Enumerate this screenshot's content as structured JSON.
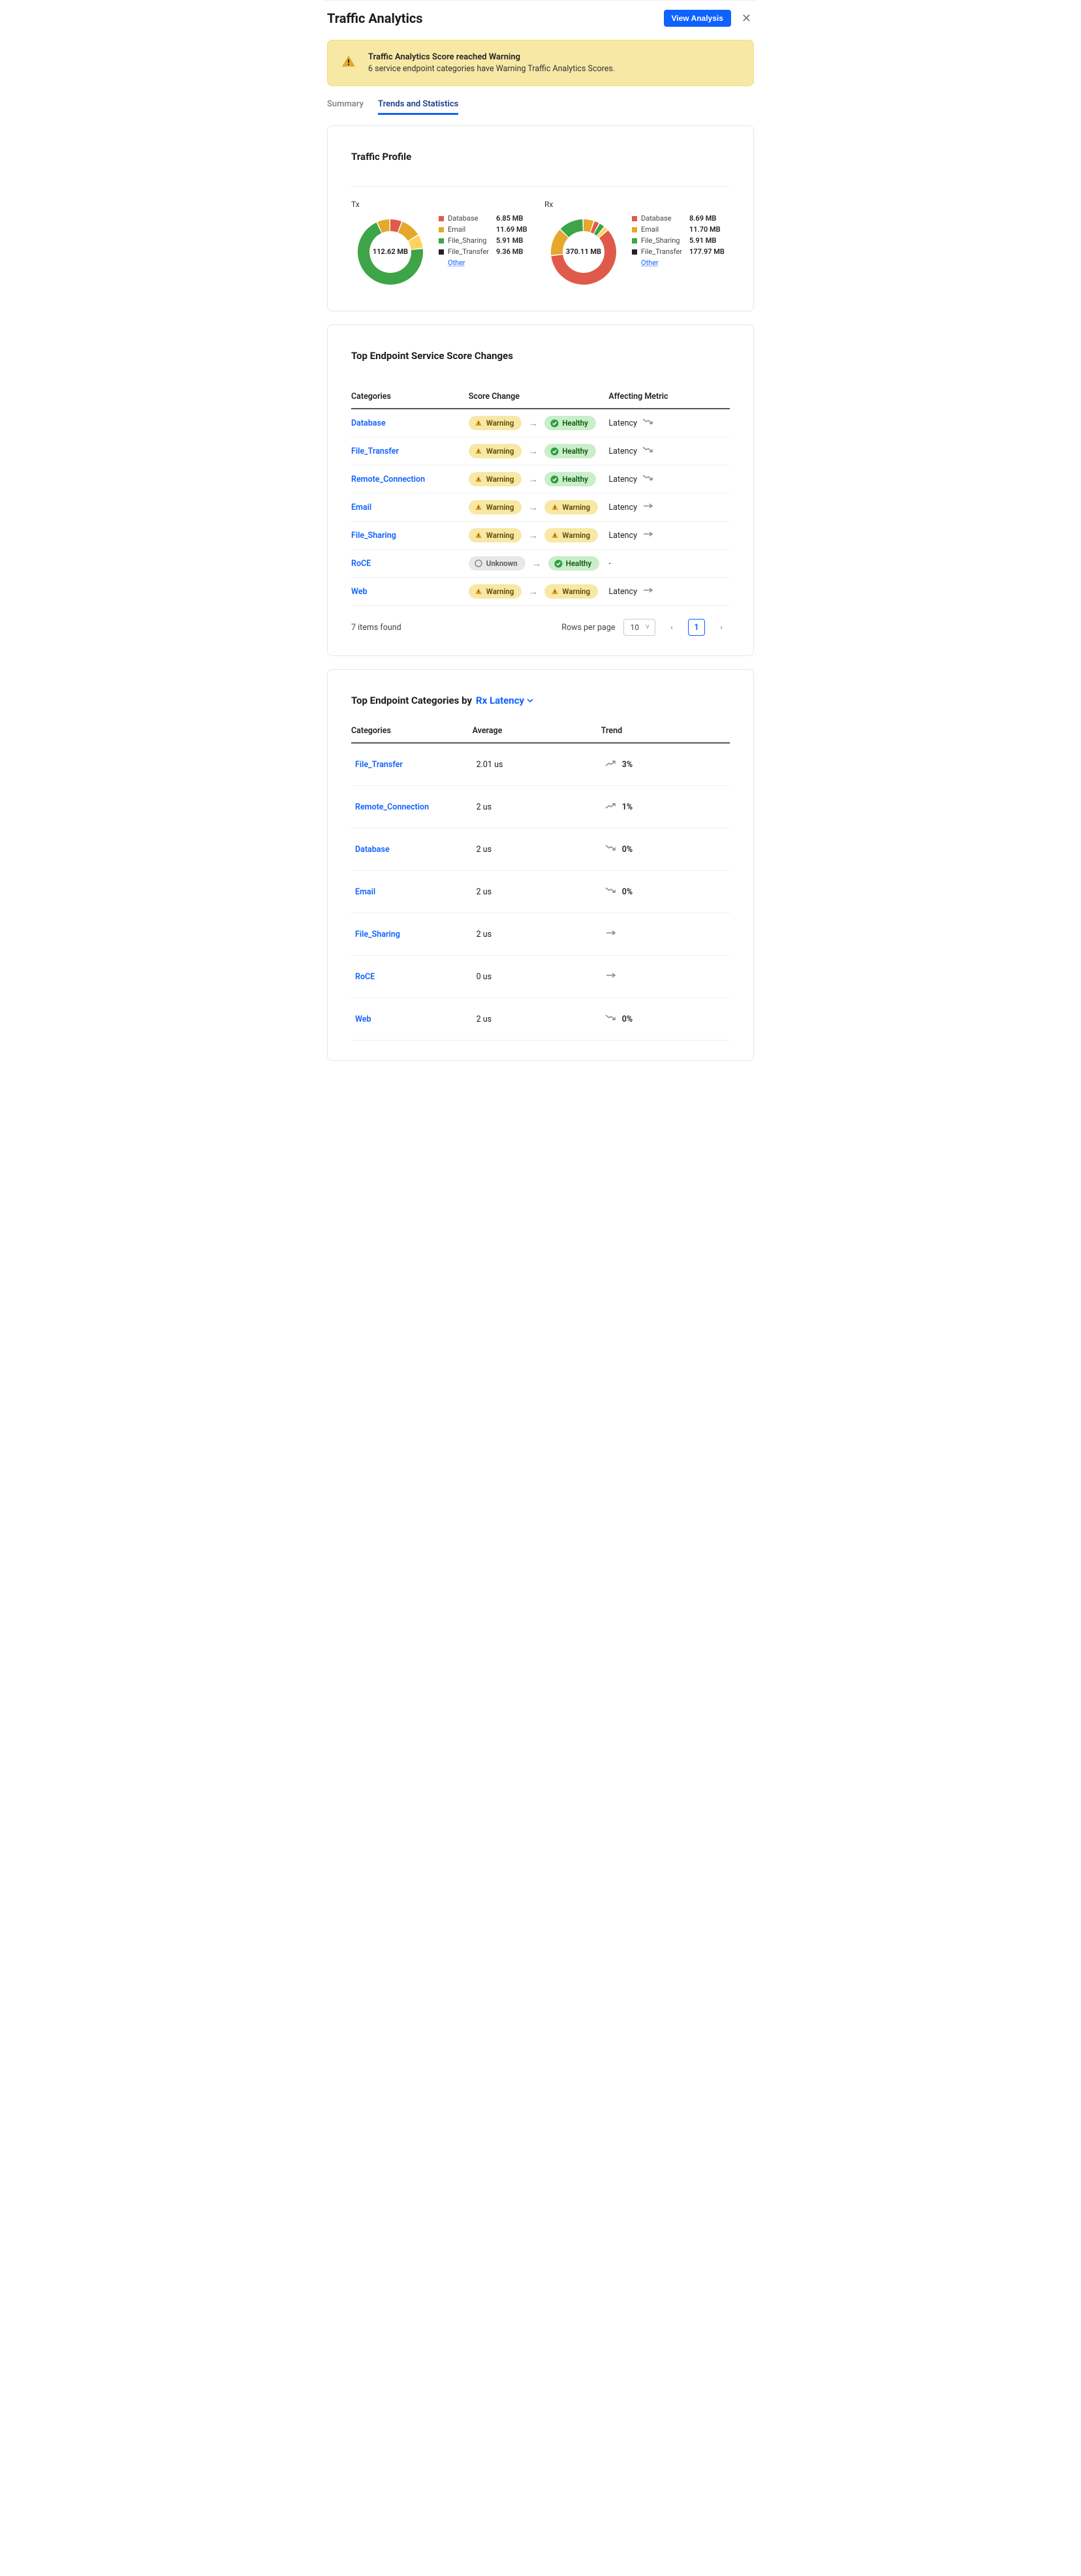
{
  "header": {
    "title": "Traffic Analytics",
    "view_button": "View Analysis"
  },
  "alert": {
    "title": "Traffic Analytics Score reached Warning",
    "text": "6 service endpoint categories have Warning Traffic Analytics Scores."
  },
  "tabs": {
    "summary": "Summary",
    "trends": "Trends and Statistics"
  },
  "profile": {
    "title": "Traffic Profile",
    "tx_label": "Tx",
    "rx_label": "Rx",
    "other": "Other",
    "tx_total": "112.62 MB",
    "rx_total": "370.11 MB",
    "legend_colors": {
      "Database": "#e05a4a",
      "Email": "#e5a82c",
      "File_Sharing": "#3da447",
      "File_Transfer": "#222222"
    },
    "tx_legend": [
      {
        "name": "Database",
        "val": "6.85 MB"
      },
      {
        "name": "Email",
        "val": "11.69 MB"
      },
      {
        "name": "File_Sharing",
        "val": "5.91 MB"
      },
      {
        "name": "File_Transfer",
        "val": "9.36 MB"
      }
    ],
    "rx_legend": [
      {
        "name": "Database",
        "val": "8.69 MB"
      },
      {
        "name": "Email",
        "val": "11.70 MB"
      },
      {
        "name": "File_Sharing",
        "val": "5.91 MB"
      },
      {
        "name": "File_Transfer",
        "val": "177.97 MB"
      }
    ],
    "tx_slices": [
      {
        "color": "#e05a4a",
        "frac": 0.061
      },
      {
        "color": "#e5a82c",
        "frac": 0.104
      },
      {
        "color": "#ffd35a",
        "frac": 0.07
      },
      {
        "color": "#3da447",
        "frac": 0.7
      },
      {
        "color": "#e5a82c",
        "frac": 0.065
      }
    ],
    "rx_slices": [
      {
        "color": "#e5a82c",
        "frac": 0.055
      },
      {
        "color": "#e05a4a",
        "frac": 0.028
      },
      {
        "color": "#3da447",
        "frac": 0.03
      },
      {
        "color": "#ffd35a",
        "frac": 0.022
      },
      {
        "color": "#e05a4a",
        "frac": 0.6
      },
      {
        "color": "#e5a82c",
        "frac": 0.14
      },
      {
        "color": "#3da447",
        "frac": 0.125
      }
    ]
  },
  "score_changes": {
    "title": "Top Endpoint Service Score Changes",
    "cols": {
      "cat": "Categories",
      "change": "Score Change",
      "metric": "Affecting Metric"
    },
    "rows": [
      {
        "cat": "Database",
        "from": "Warning",
        "to": "Healthy",
        "metric": "Latency",
        "trend": "down"
      },
      {
        "cat": "File_Transfer",
        "from": "Warning",
        "to": "Healthy",
        "metric": "Latency",
        "trend": "down"
      },
      {
        "cat": "Remote_Connection",
        "from": "Warning",
        "to": "Healthy",
        "metric": "Latency",
        "trend": "down"
      },
      {
        "cat": "Email",
        "from": "Warning",
        "to": "Warning",
        "metric": "Latency",
        "trend": "flat"
      },
      {
        "cat": "File_Sharing",
        "from": "Warning",
        "to": "Warning",
        "metric": "Latency",
        "trend": "flat"
      },
      {
        "cat": "RoCE",
        "from": "Unknown",
        "to": "Healthy",
        "metric": "-",
        "trend": "none"
      },
      {
        "cat": "Web",
        "from": "Warning",
        "to": "Warning",
        "metric": "Latency",
        "trend": "flat"
      }
    ],
    "pager": {
      "count_text": "7 items found",
      "rows_per_page_label": "Rows per page",
      "rows_per_page": "10",
      "page": "1"
    }
  },
  "by_metric": {
    "title_prefix": "Top Endpoint Categories by",
    "metric": "Rx Latency",
    "cols": {
      "cat": "Categories",
      "avg": "Average",
      "trend": "Trend"
    },
    "rows": [
      {
        "cat": "File_Transfer",
        "avg": "2.01 us",
        "trend": "up",
        "pct": "3%"
      },
      {
        "cat": "Remote_Connection",
        "avg": "2 us",
        "trend": "up",
        "pct": "1%"
      },
      {
        "cat": "Database",
        "avg": "2 us",
        "trend": "down",
        "pct": "0%"
      },
      {
        "cat": "Email",
        "avg": "2 us",
        "trend": "down",
        "pct": "0%"
      },
      {
        "cat": "File_Sharing",
        "avg": "2 us",
        "trend": "flat",
        "pct": ""
      },
      {
        "cat": "RoCE",
        "avg": "0 us",
        "trend": "flat",
        "pct": ""
      },
      {
        "cat": "Web",
        "avg": "2 us",
        "trend": "down",
        "pct": "0%"
      }
    ]
  },
  "pill_labels": {
    "Warning": "Warning",
    "Healthy": "Healthy",
    "Unknown": "Unknown"
  }
}
